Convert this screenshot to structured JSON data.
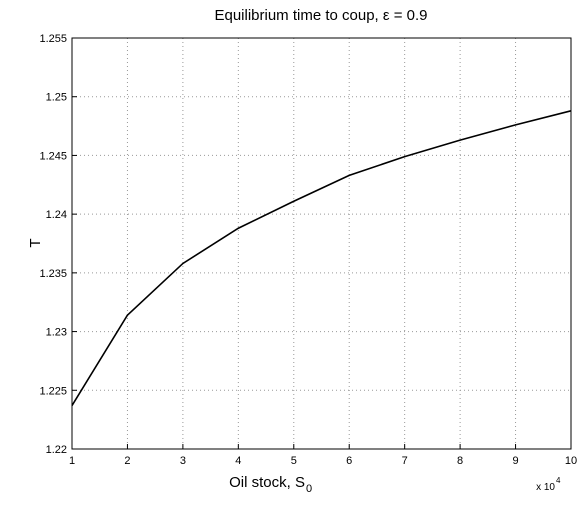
{
  "chart_data": {
    "type": "line",
    "title": "Equilibrium time to coup, ε = 0.9",
    "xlabel": "Oil stock, S",
    "xlabel_subscript": "0",
    "ylabel": "T",
    "x_multiplier": "x 10",
    "x_multiplier_exponent": "4",
    "x": [
      1,
      2,
      3,
      4,
      5,
      6,
      7,
      8,
      9,
      10
    ],
    "series": [
      {
        "color": "#000000",
        "values": [
          1.2237,
          1.2314,
          1.2358,
          1.2388,
          1.2411,
          1.2433,
          1.2449,
          1.2463,
          1.2476,
          1.2488
        ]
      }
    ],
    "xlim": [
      1,
      10
    ],
    "xticks": [
      1,
      2,
      3,
      4,
      5,
      6,
      7,
      8,
      9,
      10
    ],
    "ylim": [
      1.22,
      1.255
    ],
    "yticks": [
      1.22,
      1.225,
      1.23,
      1.235,
      1.24,
      1.245,
      1.25,
      1.255
    ],
    "grid": true
  }
}
